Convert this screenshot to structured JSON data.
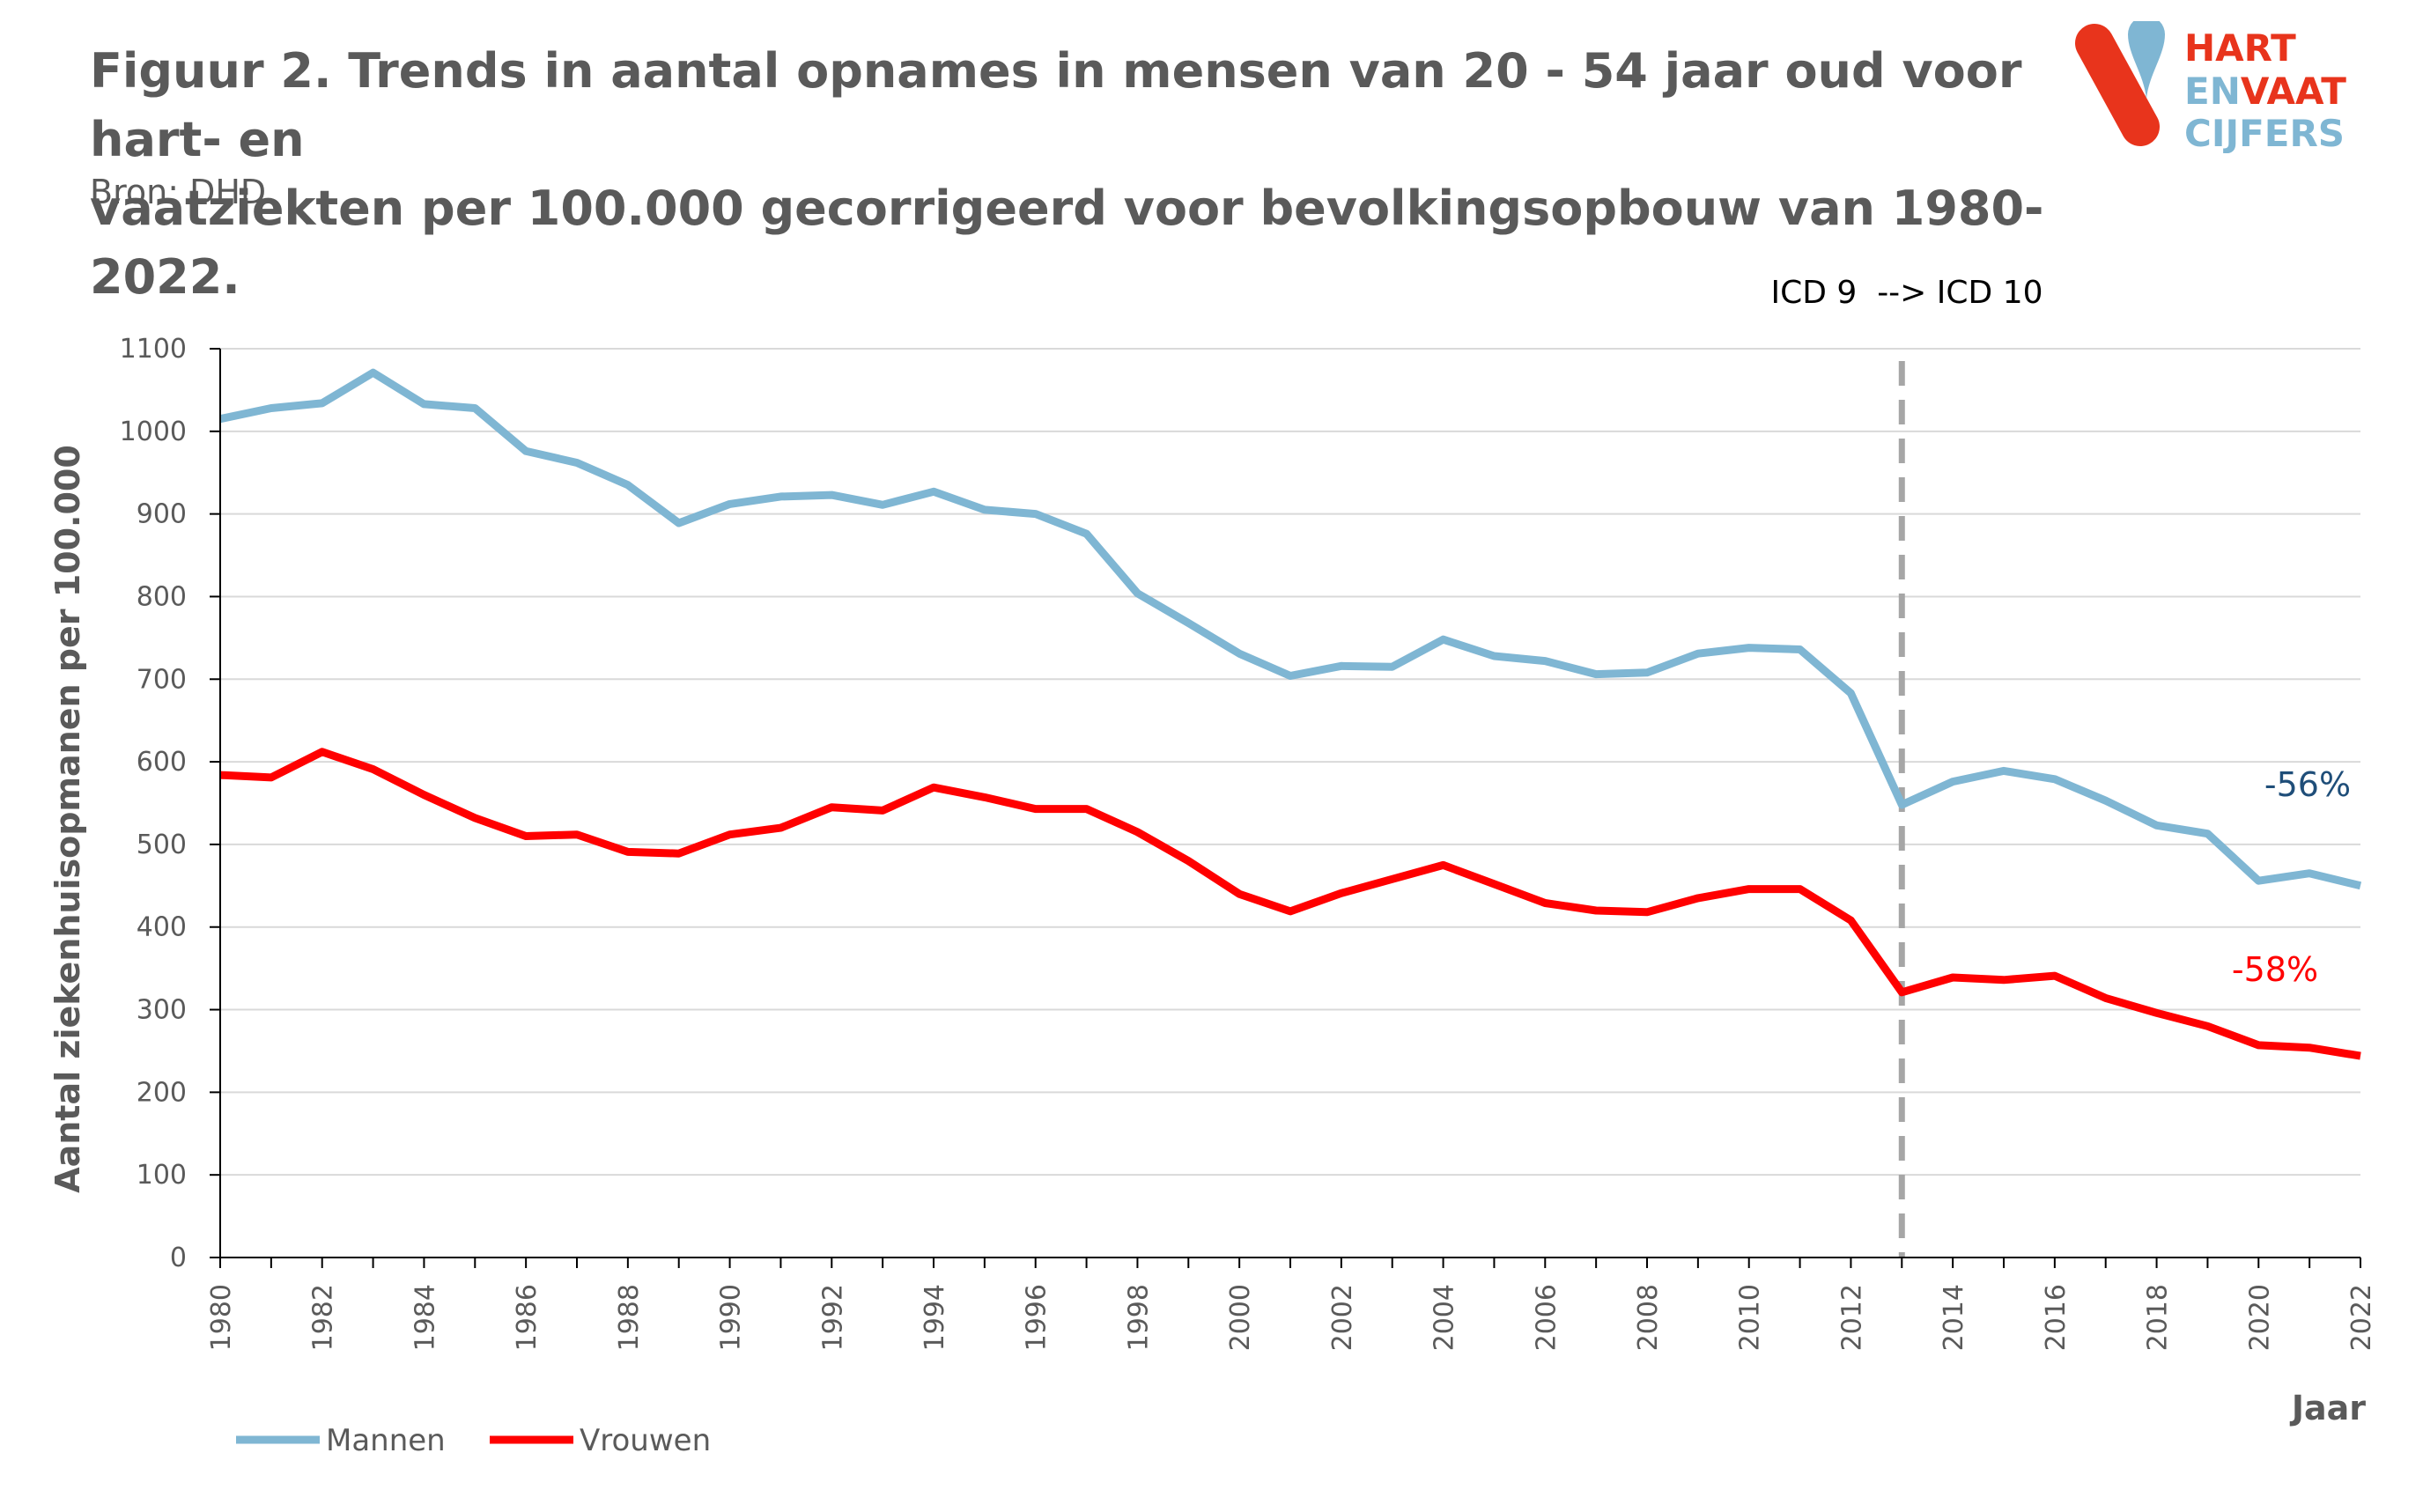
{
  "title": {
    "line1": "Figuur 2. Trends in aantal opnames in mensen van 20 - 54 jaar oud voor hart- en",
    "line2": "vaatziekten per 100.000 gecorrigeerd voor bevolkingsopbouw van 1980-2022."
  },
  "source": "Bron: DHD",
  "logo": {
    "line1": "HART",
    "line2a": "EN",
    "line2b": "VAAT",
    "line3": "CIJFERS",
    "colors": {
      "red": "#e8341c",
      "blue": "#7fb6d3"
    }
  },
  "chart_data": {
    "type": "line",
    "xlabel": "Jaar",
    "ylabel": "Aantal ziekenhuisopmanen per 100.000",
    "ylim": [
      0,
      1100
    ],
    "yticks": [
      0,
      100,
      200,
      300,
      400,
      500,
      600,
      700,
      800,
      900,
      1000,
      1100
    ],
    "xlim": [
      1980,
      2022
    ],
    "xticks": [
      "1980",
      "1982",
      "1984",
      "1986",
      "1988",
      "1990",
      "1992",
      "1994",
      "1996",
      "1998",
      "2000",
      "2002",
      "2004",
      "2006",
      "2008",
      "2010",
      "2012",
      "2014",
      "2016",
      "2018",
      "2020",
      "2022"
    ],
    "grid": true,
    "legend_position": "bottom-left",
    "x": [
      1980,
      1981,
      1982,
      1983,
      1984,
      1985,
      1986,
      1987,
      1988,
      1989,
      1990,
      1991,
      1992,
      1993,
      1994,
      1995,
      1996,
      1997,
      1998,
      1999,
      2000,
      2001,
      2002,
      2003,
      2004,
      2005,
      2006,
      2007,
      2008,
      2009,
      2010,
      2011,
      2012,
      2013,
      2014,
      2015,
      2016,
      2017,
      2018,
      2019,
      2020,
      2021,
      2022
    ],
    "series": [
      {
        "name": "Mannen",
        "color": "#7fb6d3",
        "values": [
          1015,
          1028,
          1034,
          1071,
          1033,
          1028,
          976,
          962,
          935,
          889,
          912,
          921,
          923,
          911,
          927,
          905,
          900,
          876,
          804,
          768,
          731,
          704,
          716,
          715,
          748,
          728,
          722,
          706,
          708,
          731,
          738,
          736,
          683,
          548,
          576,
          589,
          579,
          553,
          523,
          513,
          456,
          465,
          450
        ]
      },
      {
        "name": "Vrouwen",
        "color": "#ff0000",
        "values": [
          584,
          581,
          612,
          591,
          560,
          532,
          510,
          512,
          491,
          489,
          512,
          520,
          545,
          541,
          569,
          557,
          543,
          543,
          515,
          480,
          440,
          419,
          441,
          458,
          475,
          452,
          429,
          420,
          418,
          435,
          446,
          446,
          408,
          321,
          339,
          336,
          341,
          314,
          296,
          280,
          257,
          254,
          244
        ]
      }
    ],
    "annotations": {
      "icd_label": "ICD 9  --> ICD 10",
      "icd_year": 2013,
      "mannen_change": "-56%",
      "vrouwen_change": "-58%",
      "mannen_change_color": "#1f4e79",
      "vrouwen_change_color": "#ff0000"
    }
  }
}
